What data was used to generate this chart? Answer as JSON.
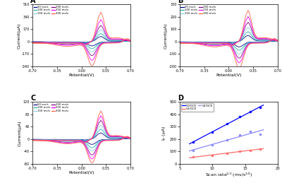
{
  "panel_labels": [
    "A",
    "B",
    "C",
    "D"
  ],
  "scan_rates": [
    50,
    100,
    150,
    200,
    250,
    300
  ],
  "colors_cv": [
    "#00008B",
    "#20B2AA",
    "#87CEEB",
    "#800080",
    "#FF00FF",
    "#FF6347"
  ],
  "legend_labels": [
    "50 mv/s",
    "100 mv/s",
    "150 mv/s",
    "200 mv/s",
    "250 mv/s",
    "300 mv/s"
  ],
  "panel_A": {
    "ylim": [
      -340,
      510
    ],
    "yticks": [
      -340,
      -170,
      0,
      170,
      340,
      510
    ],
    "xlabel": "Potential(V)",
    "ylabel": "Current(μA)",
    "peak_amplitudes": [
      70,
      110,
      160,
      220,
      300,
      400
    ],
    "trough_amplitudes": [
      55,
      90,
      130,
      180,
      240,
      310
    ]
  },
  "panel_B": {
    "ylim": [
      -200,
      300
    ],
    "yticks": [
      -200,
      -100,
      0,
      100,
      200,
      300
    ],
    "xlabel": "Potential(V)",
    "ylabel": "Current(μA)",
    "peak_amplitudes": [
      50,
      80,
      115,
      155,
      200,
      250
    ],
    "trough_amplitudes": [
      40,
      65,
      95,
      125,
      160,
      200
    ]
  },
  "panel_C": {
    "ylim": [
      -80,
      120
    ],
    "yticks": [
      -80,
      -40,
      0,
      40,
      80,
      120
    ],
    "xlabel": "Potential(V)",
    "ylabel": "Current(μA)",
    "peak_amplitudes": [
      20,
      32,
      45,
      60,
      75,
      90
    ],
    "trough_amplitudes": [
      16,
      26,
      36,
      48,
      60,
      72
    ]
  },
  "panel_D": {
    "xlabel": "Scan rate¹ᐟ² (mv/s¹ᐟ²)",
    "ylabel": "Iₚ (μA)",
    "ylim": [
      0,
      500
    ],
    "yticks": [
      0,
      100,
      200,
      300,
      400,
      500
    ],
    "xlim": [
      5,
      20
    ],
    "xticks": [
      5,
      10,
      15,
      20
    ],
    "series": [
      {
        "label": "G0/GCE",
        "color": "#0000FF",
        "y_vals": [
          175,
          255,
          325,
          385,
          420,
          455
        ]
      },
      {
        "label": "G2/GCE",
        "color": "#FF6B6B",
        "y_vals": [
          55,
          70,
          85,
          100,
          110,
          120
        ]
      },
      {
        "label": "G1/GCE",
        "color": "#8888FF",
        "y_vals": [
          105,
          155,
          195,
          235,
          265,
          240
        ]
      }
    ]
  }
}
